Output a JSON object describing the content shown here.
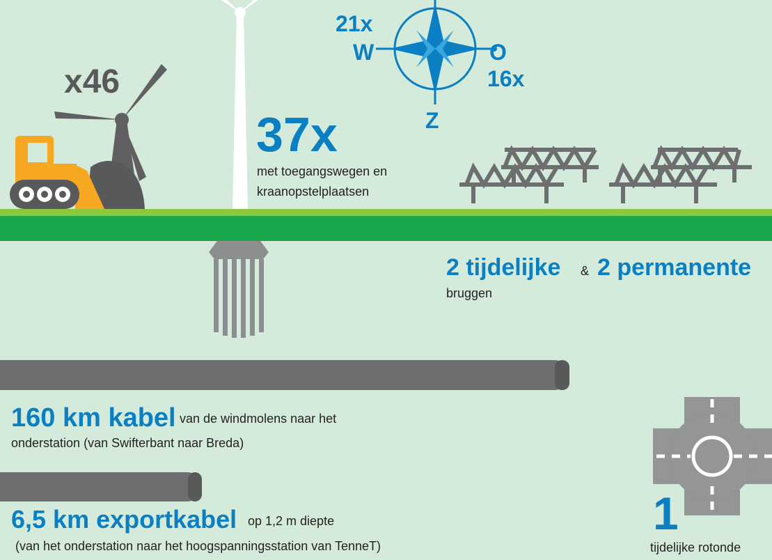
{
  "equipment": {
    "label": "x46"
  },
  "compass": {
    "west_count": "21x",
    "west": "W",
    "east": "O",
    "east_count": "16x",
    "south": "Z"
  },
  "turbines": {
    "count": "37x",
    "line1": "met toegangswegen en",
    "line2": "kraanopstelplaatsen"
  },
  "bridges": {
    "temporary": "2 tijdelijke",
    "and": "&",
    "permanent": "2 permanente",
    "label": "bruggen"
  },
  "cable": {
    "headline": "160 km kabel",
    "line1": "van de windmolens naar het",
    "line2": "onderstation (van Swifterbant naar Breda)"
  },
  "export_cable": {
    "headline": "6,5 km exportkabel",
    "line1": "op 1,2 m diepte",
    "line2": "(van het onderstation naar het hoogspanningsstation van TenneT)"
  },
  "roundabout": {
    "count": "1",
    "label": "tijdelijke rotonde"
  }
}
